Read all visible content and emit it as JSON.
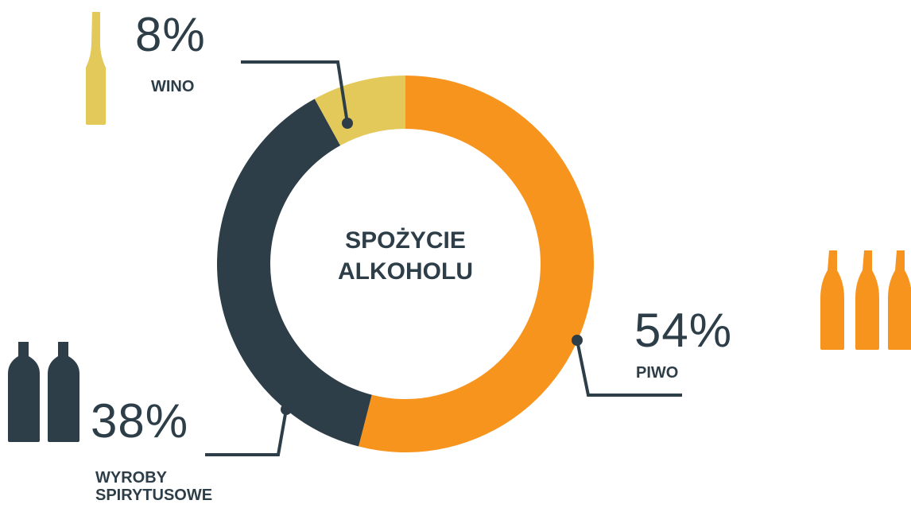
{
  "chart_data": {
    "type": "donut",
    "title": "SPOŻYCIE ALKOHOLU",
    "categories": [
      "PIWO",
      "WYROBY SPIRYTUSOWE",
      "WINO"
    ],
    "values": [
      54,
      38,
      8
    ],
    "value_labels": [
      "54%",
      "38%",
      "8%"
    ],
    "colors": [
      "#f7941d",
      "#2d3e48",
      "#e2c95a"
    ]
  }
}
